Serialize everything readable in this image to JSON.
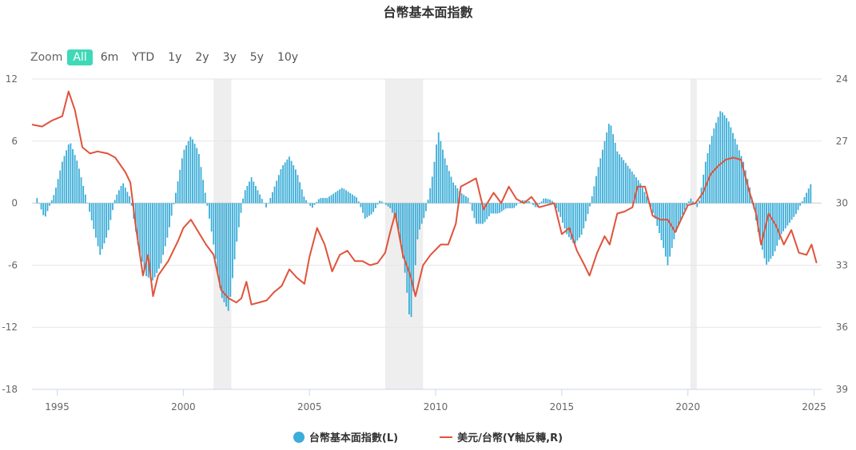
{
  "title": "台幣基本面指數",
  "zoom": {
    "label": "Zoom",
    "buttons": [
      "All",
      "6m",
      "YTD",
      "1y",
      "2y",
      "3y",
      "5y",
      "10y"
    ],
    "active": "All"
  },
  "colors": {
    "bars": "#3badd8",
    "line": "#e0533b",
    "shade": "#eeeeee",
    "grid": "#e6e6e6"
  },
  "chart_data": {
    "type": "bar+line",
    "title": "台幣基本面指數",
    "x_ticks": [
      "1995",
      "2000",
      "2005",
      "2010",
      "2015",
      "2020",
      "2025"
    ],
    "y_left": {
      "ticks": [
        "12",
        "6",
        "0",
        "-6",
        "-12",
        "-18"
      ],
      "range": [
        -18,
        12
      ]
    },
    "y_right": {
      "ticks": [
        "24",
        "27",
        "30",
        "33",
        "36",
        "39"
      ],
      "range": [
        24,
        39
      ],
      "reversed": true
    },
    "shaded_periods": [
      [
        2001.2,
        2001.9
      ],
      [
        2008.0,
        2009.5
      ],
      [
        2020.1,
        2020.35
      ]
    ],
    "series": [
      {
        "name": "台幣基本面指數(L)",
        "type": "bar",
        "axis": "left",
        "points": [
          [
            1994.2,
            0.5
          ],
          [
            1994.5,
            -1.5
          ],
          [
            1994.9,
            1
          ],
          [
            1995.2,
            4
          ],
          [
            1995.5,
            6
          ],
          [
            1995.8,
            4
          ],
          [
            1996.1,
            1
          ],
          [
            1996.4,
            -2
          ],
          [
            1996.7,
            -5
          ],
          [
            1997.0,
            -3
          ],
          [
            1997.3,
            0.5
          ],
          [
            1997.6,
            2
          ],
          [
            1997.9,
            0.5
          ],
          [
            1998.2,
            -4
          ],
          [
            1998.5,
            -7
          ],
          [
            1998.8,
            -7.5
          ],
          [
            1999.1,
            -6
          ],
          [
            1999.4,
            -3
          ],
          [
            1999.7,
            1
          ],
          [
            2000.0,
            5
          ],
          [
            2000.3,
            6.5
          ],
          [
            2000.6,
            5
          ],
          [
            2000.9,
            0.5
          ],
          [
            2001.2,
            -4
          ],
          [
            2001.5,
            -9
          ],
          [
            2001.8,
            -10.5
          ],
          [
            2002.1,
            -4
          ],
          [
            2002.4,
            1
          ],
          [
            2002.7,
            2.5
          ],
          [
            2003.0,
            1
          ],
          [
            2003.3,
            -0.5
          ],
          [
            2003.6,
            1.5
          ],
          [
            2003.9,
            3.5
          ],
          [
            2004.2,
            4.5
          ],
          [
            2004.5,
            3
          ],
          [
            2004.8,
            0.5
          ],
          [
            2005.1,
            -0.5
          ],
          [
            2005.4,
            0.5
          ],
          [
            2005.7,
            0.5
          ],
          [
            2006.0,
            1
          ],
          [
            2006.3,
            1.5
          ],
          [
            2006.6,
            1
          ],
          [
            2006.9,
            0.5
          ],
          [
            2007.2,
            -1.5
          ],
          [
            2007.5,
            -1
          ],
          [
            2007.8,
            0.3
          ],
          [
            2008.2,
            -0.5
          ],
          [
            2008.5,
            -2
          ],
          [
            2008.8,
            -7
          ],
          [
            2009.0,
            -12
          ],
          [
            2009.3,
            -3
          ],
          [
            2009.6,
            -1
          ],
          [
            2009.9,
            3
          ],
          [
            2010.1,
            7
          ],
          [
            2010.4,
            4
          ],
          [
            2010.7,
            2
          ],
          [
            2011.0,
            1
          ],
          [
            2011.3,
            0.5
          ],
          [
            2011.6,
            -2
          ],
          [
            2011.9,
            -2
          ],
          [
            2012.2,
            -1
          ],
          [
            2012.5,
            -1
          ],
          [
            2012.8,
            -0.5
          ],
          [
            2013.1,
            -0.5
          ],
          [
            2013.4,
            0.3
          ],
          [
            2013.7,
            0.2
          ],
          [
            2014.0,
            -0.5
          ],
          [
            2014.3,
            0.5
          ],
          [
            2014.6,
            0.3
          ],
          [
            2014.9,
            -1
          ],
          [
            2015.2,
            -3
          ],
          [
            2015.5,
            -4
          ],
          [
            2015.8,
            -3
          ],
          [
            2016.1,
            -0.5
          ],
          [
            2016.4,
            3
          ],
          [
            2016.7,
            6
          ],
          [
            2016.9,
            8
          ],
          [
            2017.2,
            5
          ],
          [
            2017.5,
            4
          ],
          [
            2017.8,
            3
          ],
          [
            2018.1,
            2
          ],
          [
            2018.4,
            0.5
          ],
          [
            2018.7,
            -1.5
          ],
          [
            2019.0,
            -4
          ],
          [
            2019.2,
            -6
          ],
          [
            2019.5,
            -3
          ],
          [
            2019.8,
            -1
          ],
          [
            2020.1,
            0.5
          ],
          [
            2020.4,
            -0.5
          ],
          [
            2020.7,
            4
          ],
          [
            2021.0,
            7
          ],
          [
            2021.3,
            9
          ],
          [
            2021.6,
            8
          ],
          [
            2021.9,
            6
          ],
          [
            2022.2,
            4
          ],
          [
            2022.5,
            1
          ],
          [
            2022.8,
            -3
          ],
          [
            2023.1,
            -6
          ],
          [
            2023.4,
            -5
          ],
          [
            2023.7,
            -3
          ],
          [
            2024.0,
            -2
          ],
          [
            2024.3,
            -1
          ],
          [
            2024.6,
            0.5
          ],
          [
            2024.9,
            2
          ]
        ]
      },
      {
        "name": "美元/台幣(Y軸反轉,R)",
        "type": "line",
        "axis": "right",
        "points": [
          [
            1994.0,
            26.2
          ],
          [
            1994.4,
            26.3
          ],
          [
            1994.8,
            26.0
          ],
          [
            1995.2,
            25.8
          ],
          [
            1995.45,
            24.6
          ],
          [
            1995.7,
            25.5
          ],
          [
            1996.0,
            27.3
          ],
          [
            1996.3,
            27.6
          ],
          [
            1996.6,
            27.5
          ],
          [
            1997.0,
            27.6
          ],
          [
            1997.3,
            27.8
          ],
          [
            1997.7,
            28.5
          ],
          [
            1997.9,
            29.0
          ],
          [
            1998.1,
            31.0
          ],
          [
            1998.4,
            33.5
          ],
          [
            1998.6,
            32.5
          ],
          [
            1998.8,
            34.5
          ],
          [
            1999.0,
            33.5
          ],
          [
            1999.4,
            32.8
          ],
          [
            1999.8,
            31.8
          ],
          [
            2000.0,
            31.2
          ],
          [
            2000.3,
            30.8
          ],
          [
            2000.6,
            31.4
          ],
          [
            2000.9,
            32.0
          ],
          [
            2001.2,
            32.5
          ],
          [
            2001.5,
            34.2
          ],
          [
            2001.8,
            34.6
          ],
          [
            2002.1,
            34.8
          ],
          [
            2002.3,
            34.6
          ],
          [
            2002.5,
            33.8
          ],
          [
            2002.7,
            34.9
          ],
          [
            2003.0,
            34.8
          ],
          [
            2003.3,
            34.7
          ],
          [
            2003.6,
            34.3
          ],
          [
            2003.9,
            34.0
          ],
          [
            2004.2,
            33.2
          ],
          [
            2004.5,
            33.6
          ],
          [
            2004.8,
            33.9
          ],
          [
            2005.0,
            32.6
          ],
          [
            2005.3,
            31.2
          ],
          [
            2005.6,
            32.0
          ],
          [
            2005.9,
            33.3
          ],
          [
            2006.2,
            32.5
          ],
          [
            2006.5,
            32.3
          ],
          [
            2006.8,
            32.8
          ],
          [
            2007.1,
            32.8
          ],
          [
            2007.4,
            33.0
          ],
          [
            2007.7,
            32.9
          ],
          [
            2008.0,
            32.4
          ],
          [
            2008.2,
            31.4
          ],
          [
            2008.4,
            30.5
          ],
          [
            2008.7,
            32.5
          ],
          [
            2009.0,
            33.5
          ],
          [
            2009.2,
            34.5
          ],
          [
            2009.5,
            33.0
          ],
          [
            2009.8,
            32.5
          ],
          [
            2010.2,
            32.0
          ],
          [
            2010.5,
            32.0
          ],
          [
            2010.8,
            31.0
          ],
          [
            2011.0,
            29.2
          ],
          [
            2011.3,
            29.0
          ],
          [
            2011.6,
            28.8
          ],
          [
            2011.9,
            30.3
          ],
          [
            2012.3,
            29.5
          ],
          [
            2012.6,
            30.0
          ],
          [
            2012.9,
            29.2
          ],
          [
            2013.2,
            29.8
          ],
          [
            2013.5,
            30.0
          ],
          [
            2013.8,
            29.7
          ],
          [
            2014.1,
            30.2
          ],
          [
            2014.4,
            30.1
          ],
          [
            2014.7,
            30.0
          ],
          [
            2015.0,
            31.5
          ],
          [
            2015.3,
            31.2
          ],
          [
            2015.6,
            32.3
          ],
          [
            2015.9,
            33.0
          ],
          [
            2016.1,
            33.5
          ],
          [
            2016.4,
            32.4
          ],
          [
            2016.7,
            31.6
          ],
          [
            2016.9,
            32.0
          ],
          [
            2017.2,
            30.5
          ],
          [
            2017.5,
            30.4
          ],
          [
            2017.8,
            30.2
          ],
          [
            2018.0,
            29.2
          ],
          [
            2018.3,
            29.2
          ],
          [
            2018.6,
            30.6
          ],
          [
            2018.9,
            30.8
          ],
          [
            2019.2,
            30.8
          ],
          [
            2019.5,
            31.4
          ],
          [
            2019.8,
            30.6
          ],
          [
            2020.0,
            30.1
          ],
          [
            2020.3,
            30.0
          ],
          [
            2020.6,
            29.5
          ],
          [
            2020.9,
            28.6
          ],
          [
            2021.2,
            28.2
          ],
          [
            2021.5,
            27.9
          ],
          [
            2021.8,
            27.8
          ],
          [
            2022.1,
            27.9
          ],
          [
            2022.4,
            29.3
          ],
          [
            2022.7,
            30.5
          ],
          [
            2022.9,
            32.0
          ],
          [
            2023.2,
            30.5
          ],
          [
            2023.5,
            31.1
          ],
          [
            2023.8,
            32.0
          ],
          [
            2024.1,
            31.3
          ],
          [
            2024.4,
            32.4
          ],
          [
            2024.7,
            32.5
          ],
          [
            2024.9,
            32.0
          ],
          [
            2025.1,
            32.9
          ]
        ]
      }
    ],
    "legend": [
      "台幣基本面指數(L)",
      "美元/台幣(Y軸反轉,R)"
    ],
    "legend_position": "bottom"
  }
}
